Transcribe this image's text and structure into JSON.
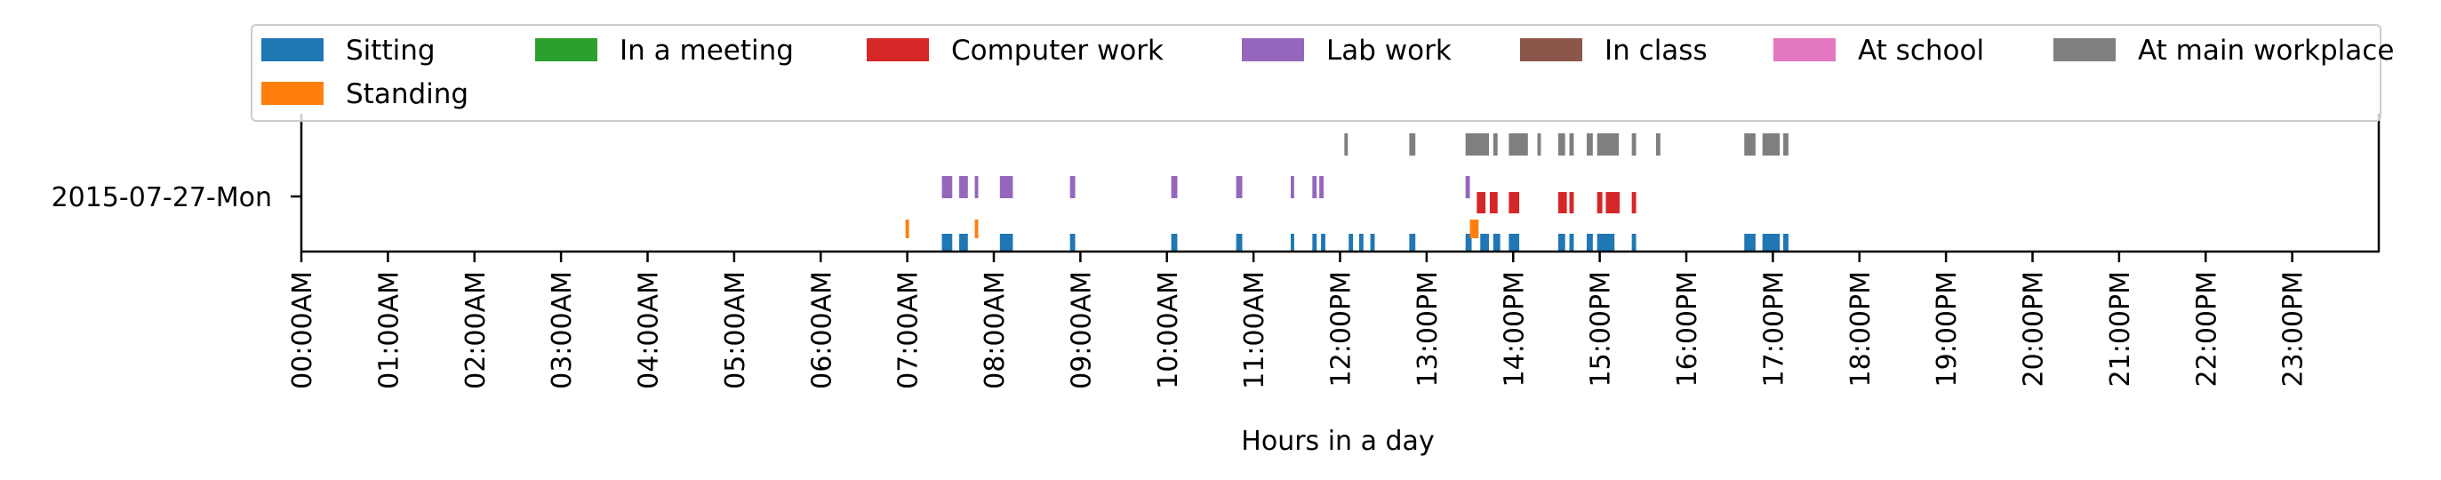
{
  "chart_data": {
    "type": "timeline",
    "title": "",
    "xlabel": "Hours in a day",
    "ylabel": "",
    "xlim": [
      0,
      24
    ],
    "y_category": "2015-07-27-Mon",
    "x_tick_labels": [
      "00:00AM",
      "01:00AM",
      "02:00AM",
      "03:00AM",
      "04:00AM",
      "05:00AM",
      "06:00AM",
      "07:00AM",
      "08:00AM",
      "09:00AM",
      "10:00AM",
      "11:00AM",
      "12:00PM",
      "13:00PM",
      "14:00PM",
      "15:00PM",
      "16:00PM",
      "17:00PM",
      "18:00PM",
      "19:00PM",
      "20:00PM",
      "21:00PM",
      "22:00PM",
      "23:00PM"
    ],
    "legend_position": "top",
    "series": [
      {
        "name": "Sitting",
        "color": "#1f77b4",
        "intervals": [
          [
            7.4,
            7.52
          ],
          [
            7.6,
            7.7
          ],
          [
            8.07,
            8.22
          ],
          [
            8.88,
            8.94
          ],
          [
            10.05,
            10.12
          ],
          [
            10.8,
            10.87
          ],
          [
            11.43,
            11.47
          ],
          [
            11.68,
            11.73
          ],
          [
            11.78,
            11.83
          ],
          [
            12.1,
            12.15
          ],
          [
            12.22,
            12.27
          ],
          [
            12.35,
            12.4
          ],
          [
            12.8,
            12.87
          ],
          [
            13.45,
            13.52
          ],
          [
            13.62,
            13.72
          ],
          [
            13.77,
            13.85
          ],
          [
            13.95,
            14.07
          ],
          [
            14.52,
            14.6
          ],
          [
            14.65,
            14.7
          ],
          [
            14.85,
            14.92
          ],
          [
            14.97,
            15.17
          ],
          [
            15.37,
            15.42
          ],
          [
            16.67,
            16.8
          ],
          [
            16.88,
            17.08
          ],
          [
            17.12,
            17.18
          ]
        ]
      },
      {
        "name": "Standing",
        "color": "#ff7f0e",
        "intervals": [
          [
            6.98,
            7.02
          ],
          [
            7.78,
            7.82
          ],
          [
            13.5,
            13.6
          ]
        ]
      },
      {
        "name": "In a meeting",
        "color": "#2ca02c",
        "intervals": []
      },
      {
        "name": "Computer work",
        "color": "#d62728",
        "intervals": [
          [
            13.58,
            13.68
          ],
          [
            13.73,
            13.82
          ],
          [
            13.95,
            14.07
          ],
          [
            14.52,
            14.62
          ],
          [
            14.65,
            14.7
          ],
          [
            14.97,
            15.03
          ],
          [
            15.07,
            15.23
          ],
          [
            15.37,
            15.42
          ]
        ]
      },
      {
        "name": "Lab work",
        "color": "#9467bd",
        "intervals": [
          [
            7.4,
            7.52
          ],
          [
            7.6,
            7.7
          ],
          [
            7.78,
            7.82
          ],
          [
            8.07,
            8.22
          ],
          [
            8.88,
            8.94
          ],
          [
            10.05,
            10.12
          ],
          [
            10.8,
            10.87
          ],
          [
            11.43,
            11.47
          ],
          [
            11.68,
            11.73
          ],
          [
            11.76,
            11.81
          ],
          [
            13.45,
            13.5
          ]
        ]
      },
      {
        "name": "In class",
        "color": "#8c564b",
        "intervals": []
      },
      {
        "name": "At school",
        "color": "#e377c2",
        "intervals": []
      },
      {
        "name": "At main workplace",
        "color": "#7f7f7f",
        "intervals": [
          [
            12.05,
            12.09
          ],
          [
            12.8,
            12.87
          ],
          [
            13.45,
            13.72
          ],
          [
            13.77,
            13.82
          ],
          [
            13.95,
            14.17
          ],
          [
            14.28,
            14.32
          ],
          [
            14.52,
            14.6
          ],
          [
            14.65,
            14.7
          ],
          [
            14.85,
            14.92
          ],
          [
            14.97,
            15.22
          ],
          [
            15.37,
            15.42
          ],
          [
            15.65,
            15.7
          ],
          [
            16.67,
            16.8
          ],
          [
            16.88,
            17.08
          ],
          [
            17.12,
            17.18
          ]
        ]
      }
    ]
  }
}
